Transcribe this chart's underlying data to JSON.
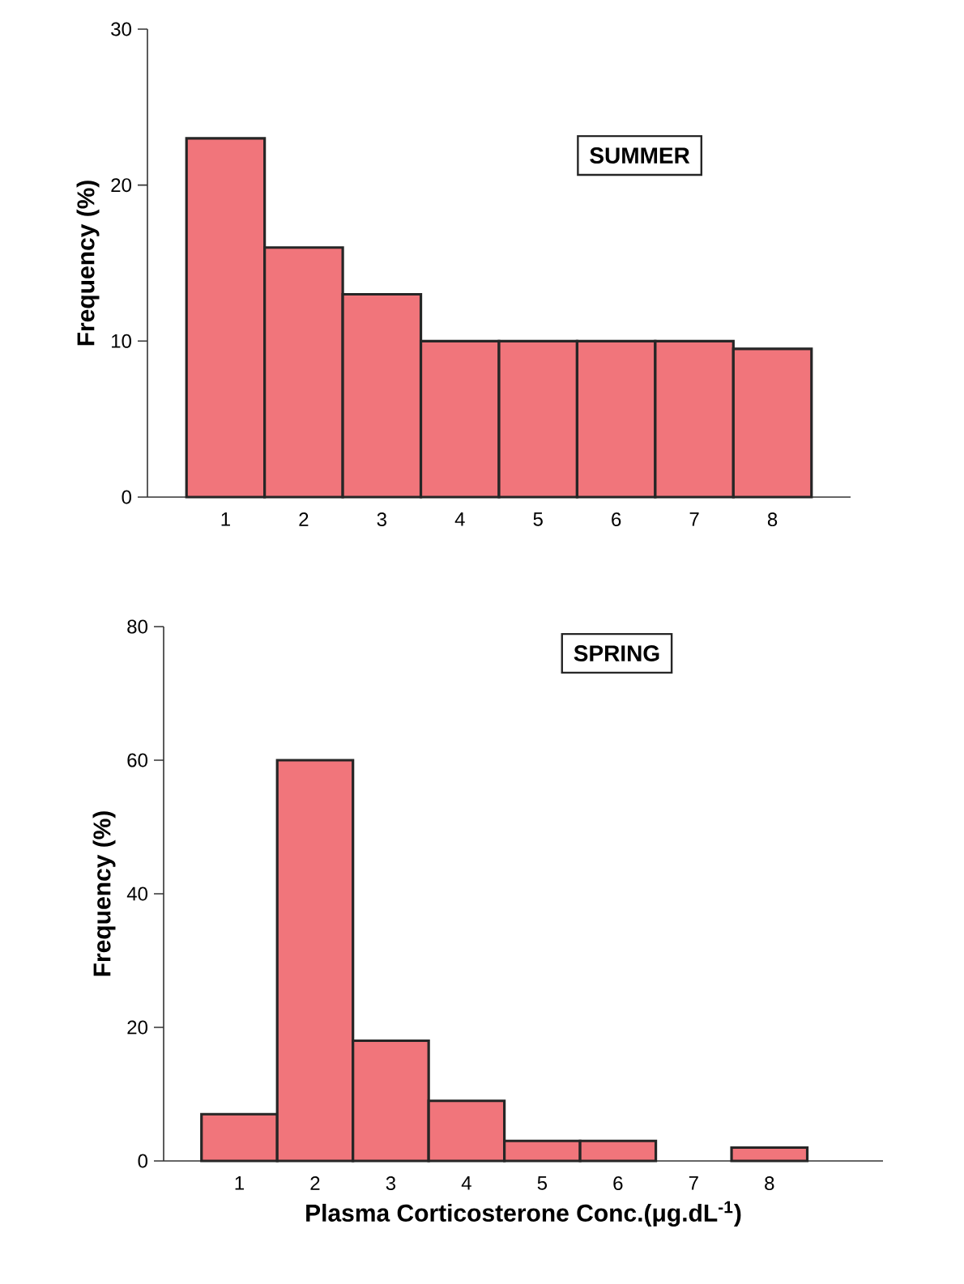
{
  "chart_data": [
    {
      "type": "bar",
      "categories": [
        "1",
        "2",
        "3",
        "4",
        "5",
        "6",
        "7",
        "8"
      ],
      "values": [
        23,
        16,
        13,
        10,
        10,
        10,
        10,
        9.5
      ],
      "color": "#f1757b",
      "ylabel": "Frequency (%)",
      "ylim": [
        0,
        30
      ],
      "yticks": [
        0,
        10,
        20,
        30
      ],
      "annotations": [
        "SUMMER"
      ]
    },
    {
      "type": "bar",
      "categories": [
        "1",
        "2",
        "3",
        "4",
        "5",
        "6",
        "7",
        "8"
      ],
      "values": [
        7,
        60,
        18,
        9,
        3,
        3,
        null,
        2
      ],
      "color": "#f1757b",
      "ylabel": "Frequency (%)",
      "xlabel": "Plasma Corticosterone Conc.(μg.dL$^{-1}$)",
      "ylim": [
        0,
        80
      ],
      "yticks": [
        0,
        20,
        40,
        60,
        80
      ],
      "annotations": [
        "SPRING"
      ]
    }
  ]
}
